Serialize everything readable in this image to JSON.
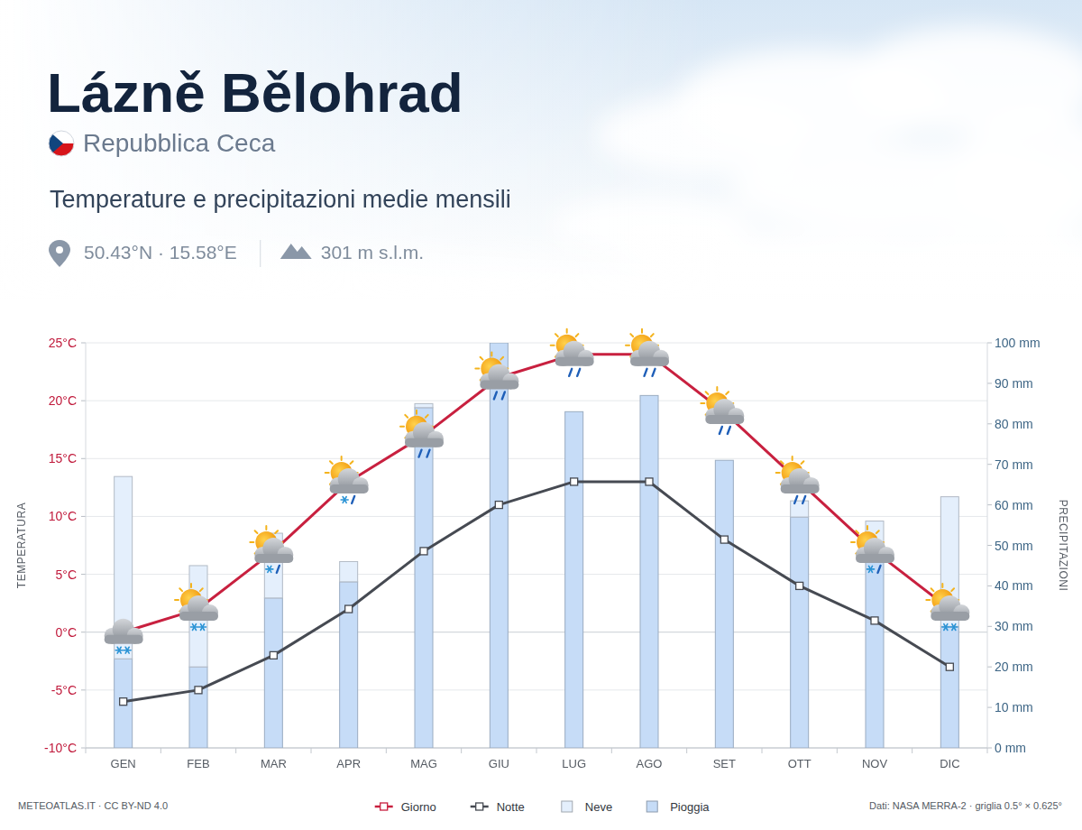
{
  "chart_data": {
    "type": "combo",
    "title": "Lázně Bělohrad",
    "country": "Repubblica Ceca",
    "subtitle": "Temperature e precipitazioni medie mensili",
    "coordinates": "50.43°N · 15.58°E",
    "elevation": "301 m s.l.m.",
    "y_label": "TEMPERATURA",
    "y2_label": "PRECIPITAZIONI",
    "source": "METEOATLAS.IT · CC BY-ND 4.0",
    "note": "Dati: NASA MERRA-2 · griglia 0.5° × 0.625°",
    "categories": [
      "GEN",
      "FEB",
      "MAR",
      "APR",
      "MAG",
      "GIU",
      "LUG",
      "AGO",
      "SET",
      "OTT",
      "NOV",
      "DIC"
    ],
    "ylim": [
      -10,
      25
    ],
    "yticks": [
      {
        "value": -10,
        "label": "-10°C"
      },
      {
        "value": -5,
        "label": "-5°C"
      },
      {
        "value": 0,
        "label": "0°C"
      },
      {
        "value": 5,
        "label": "5°C"
      },
      {
        "value": 10,
        "label": "10°C"
      },
      {
        "value": 15,
        "label": "15°C"
      },
      {
        "value": 20,
        "label": "20°C"
      },
      {
        "value": 25,
        "label": "25°C"
      }
    ],
    "y2lim": [
      0,
      100
    ],
    "y2ticks": [
      {
        "value": 0,
        "label": "0 mm"
      },
      {
        "value": 10,
        "label": "10 mm"
      },
      {
        "value": 20,
        "label": "20 mm"
      },
      {
        "value": 30,
        "label": "30 mm"
      },
      {
        "value": 40,
        "label": "40 mm"
      },
      {
        "value": 50,
        "label": "50 mm"
      },
      {
        "value": 60,
        "label": "60 mm"
      },
      {
        "value": 70,
        "label": "70 mm"
      },
      {
        "value": 80,
        "label": "80 mm"
      },
      {
        "value": 90,
        "label": "90 mm"
      },
      {
        "value": 100,
        "label": "100 mm"
      }
    ],
    "grid": true,
    "stacked": true,
    "legend": "bottom",
    "series": [
      {
        "name": "Giorno",
        "type": "line",
        "color": "#c8203f",
        "marker": "square",
        "values": [
          0,
          2,
          7,
          13,
          17,
          22,
          24,
          24,
          19,
          13,
          7,
          2
        ]
      },
      {
        "name": "Notte",
        "type": "line",
        "color": "#464a52",
        "marker": "square",
        "values": [
          -6,
          -5,
          -2,
          2,
          7,
          11,
          13,
          13,
          8,
          4,
          1,
          -3
        ]
      },
      {
        "name": "Neve",
        "type": "bar",
        "axis": "y2",
        "color": "#e4effc",
        "values": [
          45,
          25,
          16,
          5,
          1,
          0,
          0,
          0,
          0,
          4,
          6,
          32
        ]
      },
      {
        "name": "Pioggia",
        "type": "bar",
        "axis": "y2",
        "color": "#c6dcf7",
        "values": [
          22,
          20,
          37,
          41,
          84,
          100,
          83,
          87,
          71,
          57,
          50,
          30
        ]
      }
    ]
  }
}
